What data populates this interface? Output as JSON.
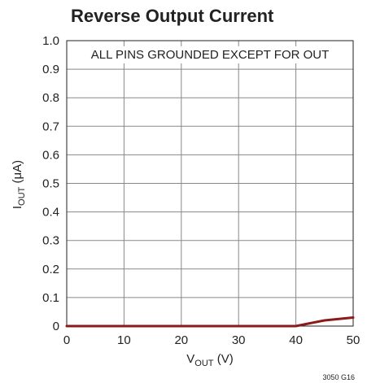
{
  "chart_data": {
    "type": "line",
    "title": "Reverse Output Current",
    "xlabel": {
      "main": "V",
      "sub": "OUT",
      "rest": " (V)"
    },
    "ylabel": {
      "main": "I",
      "sub": "OUT",
      "rest": " (μA)"
    },
    "xlim": [
      0,
      50
    ],
    "ylim": [
      0,
      1.0
    ],
    "x_ticks": [
      0,
      10,
      20,
      30,
      40,
      50
    ],
    "x_tick_labels": [
      "0",
      "10",
      "20",
      "30",
      "40",
      "50"
    ],
    "y_ticks": [
      0,
      0.1,
      0.2,
      0.3,
      0.4,
      0.5,
      0.6,
      0.7,
      0.8,
      0.9,
      1.0
    ],
    "y_tick_labels": [
      "0",
      "0.1",
      "0.2",
      "0.3",
      "0.4",
      "0.5",
      "0.6",
      "0.7",
      "0.8",
      "0.9",
      "1.0"
    ],
    "grid": true,
    "annotation": "ALL PINS GROUNDED EXCEPT FOR OUT",
    "figure_id": "3050 G16",
    "series": [
      {
        "x": [
          0,
          10,
          20,
          30,
          40,
          45,
          50
        ],
        "y": [
          0,
          0,
          0,
          0,
          0,
          0.02,
          0.03
        ],
        "color": "#8b1a1a"
      }
    ]
  }
}
